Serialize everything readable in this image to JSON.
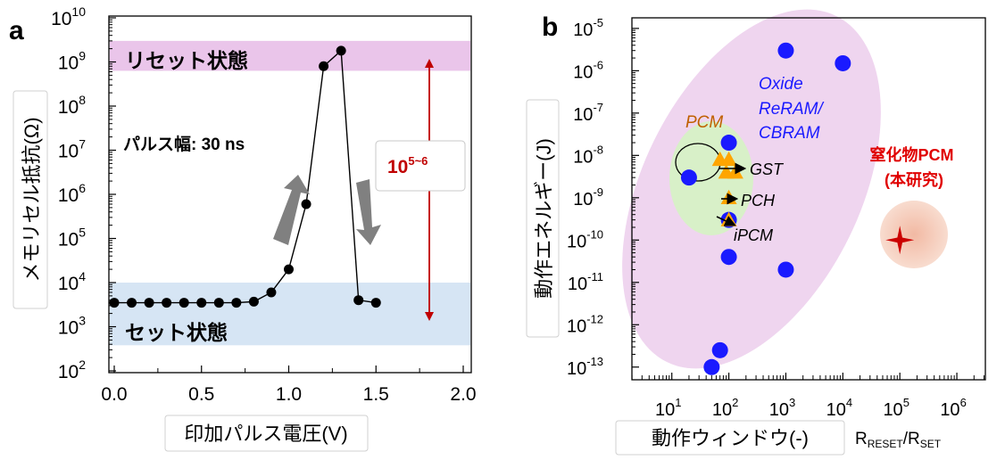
{
  "chart_data": [
    {
      "panel_label": "a",
      "type": "line",
      "xlabel": "印加パルス電圧(V)",
      "ylabel": "メモリセル抵抗(Ω)",
      "xlim": [
        0,
        2.0
      ],
      "ylim_log10": [
        2,
        10
      ],
      "y_scale": "log",
      "x_ticks": [
        "0.0",
        "0.5",
        "1.0",
        "1.5",
        "2.0"
      ],
      "y_tick_exponents": [
        "2",
        "3",
        "4",
        "5",
        "6",
        "7",
        "8",
        "9",
        "10"
      ],
      "y_tick_base": "10",
      "x": [
        0.0,
        0.1,
        0.2,
        0.3,
        0.4,
        0.5,
        0.6,
        0.7,
        0.8,
        0.9,
        1.0,
        1.1,
        1.2,
        1.3,
        1.4,
        1.5
      ],
      "y": [
        3500,
        3500,
        3500,
        3500,
        3500,
        3500,
        3500,
        3500,
        3700,
        6000,
        20000,
        600000,
        800000000,
        1800000000,
        4000,
        3500
      ],
      "bands": [
        {
          "label": "リセット状態",
          "from": 630000000,
          "to": 3000000000,
          "color": "#eac5ea"
        },
        {
          "label": "セット状態",
          "from": 380,
          "to": 10000,
          "color": "#d6e5f4"
        }
      ],
      "annotation_pulse": "パルス幅: 30 ns",
      "ratio_base": "10",
      "ratio_exp": "5~6",
      "ratio_color": "#c00000",
      "arrow_color": "#808080"
    },
    {
      "panel_label": "b",
      "type": "scatter",
      "xlabel": "動作ウィンドウ(-)",
      "xlabel_ratio": {
        "r1": "R",
        "s1": "RESET",
        "slash": "/R",
        "s2": "SET"
      },
      "ylabel": "動作エネルギー(J)",
      "x_scale": "log",
      "y_scale": "log",
      "xlim_log10": [
        0.3,
        6.5
      ],
      "ylim_log10": [
        -13.3,
        -4.75
      ],
      "x_tick_exponents": [
        "1",
        "2",
        "3",
        "4",
        "5",
        "6"
      ],
      "y_tick_exponents": [
        "-5",
        "-6",
        "-7",
        "-8",
        "-9",
        "-10",
        "-11",
        "-12",
        "-13"
      ],
      "tick_base": "10",
      "series": [
        {
          "name": "Oxide ReRAM/ CBRAM",
          "label_lines": [
            "Oxide",
            "ReRAM/",
            "CBRAM"
          ],
          "color": "#1a1aff",
          "x": [
            20,
            100,
            1000,
            10000,
            100,
            100,
            1000,
            70,
            50
          ],
          "y": [
            3e-09,
            2e-08,
            3e-06,
            1.5e-06,
            3e-10,
            4e-11,
            2e-11,
            2.5e-13,
            1e-13
          ]
        },
        {
          "name": "PCM",
          "color": "#ffa500",
          "label_color": "#c06000",
          "x": [
            70,
            100,
            90,
            130,
            100,
            100
          ],
          "y": [
            8e-09,
            8e-09,
            4e-09,
            4e-09,
            1e-09,
            3e-10
          ]
        },
        {
          "name": "窒化物PCM (本研究)",
          "label_lines": [
            "窒化物PCM",
            "(本研究)"
          ],
          "color": "#cc0000",
          "x": [
            100000
          ],
          "y": [
            1e-10
          ]
        }
      ],
      "pointers": [
        "GST",
        "PCH",
        "iPCM"
      ],
      "colors": {
        "ellipse_reram": "#efd5ef",
        "ellipse_pcm": "#d8f0c8",
        "glow": "#f4cab7"
      }
    }
  ]
}
